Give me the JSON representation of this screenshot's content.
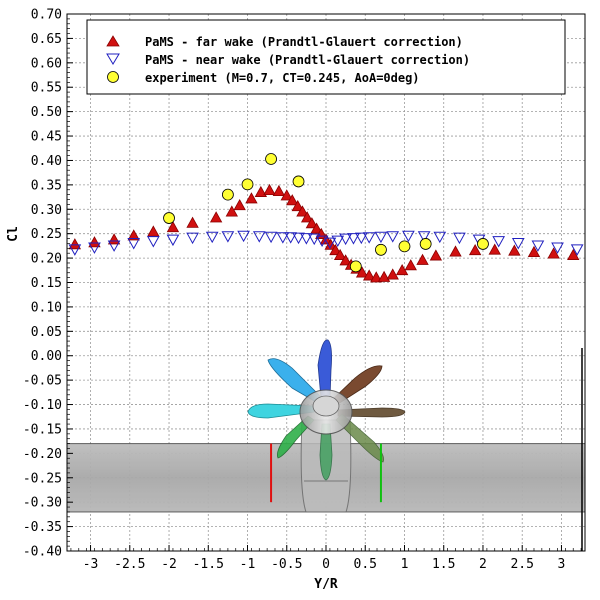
{
  "chart_data": {
    "type": "scatter",
    "xlabel": "Y/R",
    "ylabel": "Cl",
    "xlim": [
      -3.3,
      3.3
    ],
    "ylim": [
      -0.4,
      0.7
    ],
    "xticks": [
      "-3",
      "-2.5",
      "-2",
      "-1.5",
      "-1",
      "-0.5",
      "0",
      "0.5",
      "1",
      "1.5",
      "2",
      "2.5",
      "3"
    ],
    "yticks": [
      "0.70",
      "0.65",
      "0.60",
      "0.55",
      "0.50",
      "0.45",
      "0.40",
      "0.35",
      "0.30",
      "0.25",
      "0.20",
      "0.15",
      "0.10",
      "0.05",
      "0.00",
      "-0.05",
      "-0.10",
      "-0.15",
      "-0.20",
      "-0.25",
      "-0.30",
      "-0.35",
      "-0.40"
    ],
    "grid": true,
    "legend_position": "top",
    "series": [
      {
        "name": "PaMS - far  wake (Prandtl-Glauert correction)",
        "marker": "triangle-up-filled",
        "color": "#d01010",
        "x": [
          -3.2,
          -2.95,
          -2.7,
          -2.45,
          -2.2,
          -1.95,
          -1.7,
          -1.4,
          -1.2,
          -1.1,
          -0.95,
          -0.83,
          -0.72,
          -0.6,
          -0.5,
          -0.43,
          -0.36,
          -0.3,
          -0.24,
          -0.18,
          -0.12,
          -0.06,
          0.0,
          0.06,
          0.12,
          0.18,
          0.25,
          0.32,
          0.39,
          0.46,
          0.55,
          0.64,
          0.74,
          0.85,
          0.97,
          1.08,
          1.23,
          1.4,
          1.65,
          1.9,
          2.15,
          2.4,
          2.65,
          2.9,
          3.15
        ],
        "y": [
          0.228,
          0.232,
          0.238,
          0.246,
          0.254,
          0.263,
          0.272,
          0.283,
          0.295,
          0.308,
          0.322,
          0.335,
          0.339,
          0.337,
          0.328,
          0.318,
          0.306,
          0.295,
          0.283,
          0.271,
          0.26,
          0.249,
          0.238,
          0.227,
          0.216,
          0.206,
          0.195,
          0.186,
          0.178,
          0.17,
          0.164,
          0.16,
          0.161,
          0.166,
          0.175,
          0.185,
          0.196,
          0.205,
          0.213,
          0.216,
          0.217,
          0.215,
          0.212,
          0.209,
          0.206
        ]
      },
      {
        "name": "PaMS - near wake (Prandtl-Glauert correction)",
        "marker": "triangle-down-open",
        "color": "#2020c0",
        "x": [
          -3.2,
          -2.95,
          -2.7,
          -2.45,
          -2.2,
          -1.95,
          -1.7,
          -1.45,
          -1.25,
          -1.05,
          -0.85,
          -0.7,
          -0.55,
          -0.45,
          -0.35,
          -0.25,
          -0.15,
          -0.05,
          0.05,
          0.15,
          0.25,
          0.35,
          0.45,
          0.55,
          0.7,
          0.85,
          1.05,
          1.25,
          1.45,
          1.7,
          1.95,
          2.2,
          2.45,
          2.7,
          2.95,
          3.2
        ],
        "y": [
          0.218,
          0.222,
          0.226,
          0.231,
          0.235,
          0.238,
          0.242,
          0.244,
          0.245,
          0.246,
          0.245,
          0.244,
          0.243,
          0.243,
          0.242,
          0.241,
          0.24,
          0.236,
          0.232,
          0.236,
          0.24,
          0.241,
          0.242,
          0.243,
          0.244,
          0.245,
          0.246,
          0.245,
          0.244,
          0.242,
          0.238,
          0.235,
          0.231,
          0.226,
          0.222,
          0.218
        ]
      },
      {
        "name": "experiment (M=0.7, CT=0.245, AoA=0deg)",
        "marker": "circle-filled",
        "color": "#ffff33",
        "x": [
          -2.0,
          -1.25,
          -1.0,
          -0.7,
          -0.35,
          0.38,
          0.7,
          1.0,
          1.27,
          2.0
        ],
        "y": [
          0.282,
          0.33,
          0.351,
          0.403,
          0.357,
          0.183,
          0.217,
          0.224,
          0.229,
          0.229
        ]
      }
    ]
  },
  "illustration": {
    "nacelle_band_y": [
      -0.18,
      -0.32
    ],
    "red_marker_x": -0.7,
    "green_marker_x": 0.7
  },
  "colors": {
    "background": "#ffffff",
    "grid": "#9a9a9a",
    "far_wake": "#d01010",
    "near_wake": "#2020c0",
    "experiment": "#ffff33"
  }
}
